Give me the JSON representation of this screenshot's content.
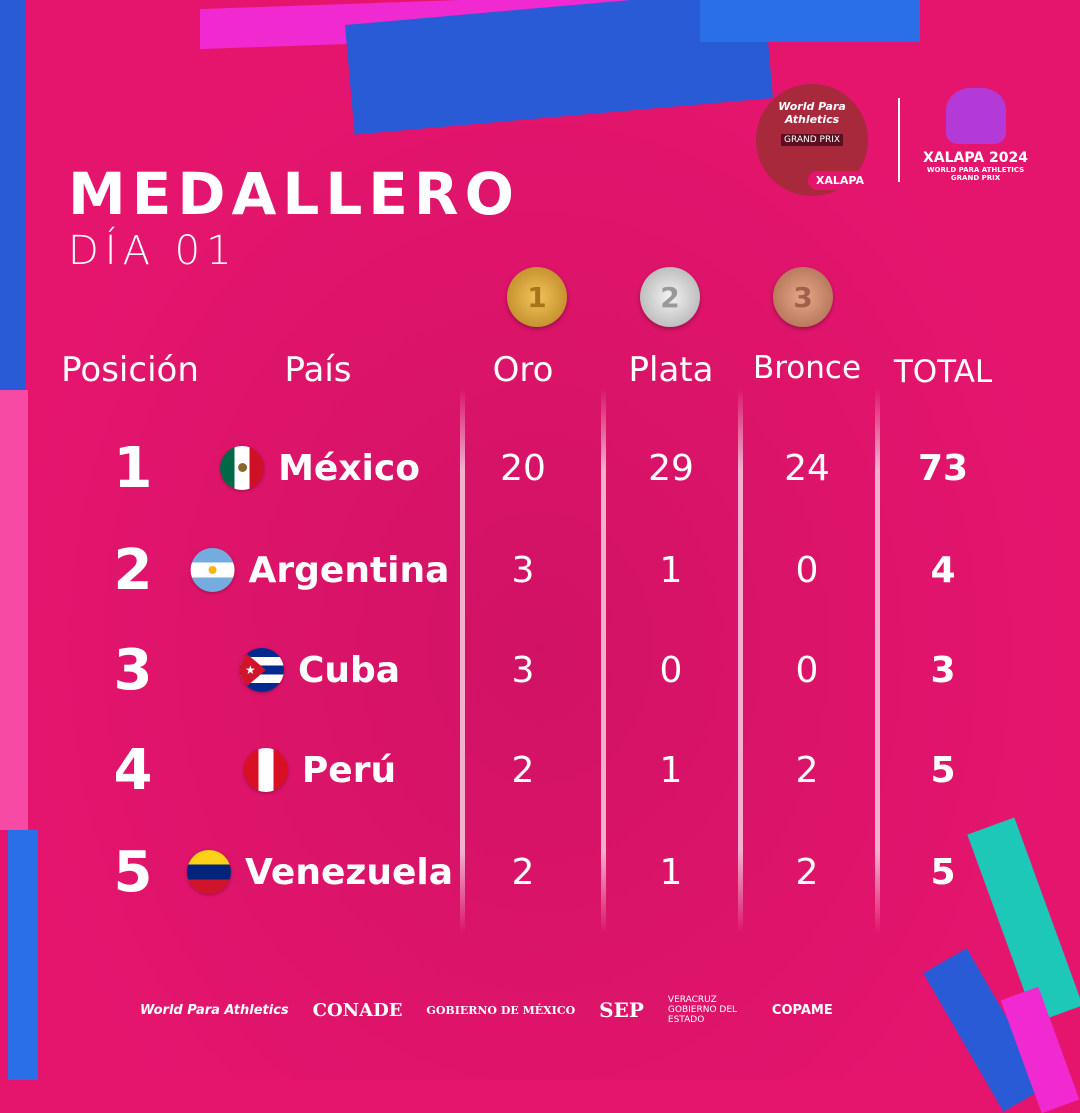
{
  "title": "MEDALLERO",
  "subtitle": "DÍA 01",
  "header_logo": {
    "wpa": "World Para Athletics",
    "gp": "GRAND PRIX",
    "city": "XALAPA",
    "event": "XALAPA 2024",
    "event_sub": "WORLD PARA ATHLETICS",
    "event_sub2": "GRAND PRIX"
  },
  "medals": [
    {
      "label": "1",
      "color": "#d9a53a"
    },
    {
      "label": "2",
      "color": "#c8c8c8"
    },
    {
      "label": "3",
      "color": "#c98a6a"
    }
  ],
  "columns": {
    "position": "Posición",
    "country": "País",
    "gold": "Oro",
    "silver": "Plata",
    "bronze": "Bronce",
    "total": "TOTAL"
  },
  "rows": [
    {
      "pos": "1",
      "country": "México",
      "flag": "mexico-flag",
      "gold": "20",
      "silver": "29",
      "bronze": "24",
      "total": "73"
    },
    {
      "pos": "2",
      "country": "Argentina",
      "flag": "argentina-flag",
      "gold": "3",
      "silver": "1",
      "bronze": "0",
      "total": "4"
    },
    {
      "pos": "3",
      "country": "Cuba",
      "flag": "cuba-flag",
      "gold": "3",
      "silver": "0",
      "bronze": "0",
      "total": "3"
    },
    {
      "pos": "4",
      "country": "Perú",
      "flag": "peru-flag",
      "gold": "2",
      "silver": "1",
      "bronze": "2",
      "total": "5"
    },
    {
      "pos": "5",
      "country": "Venezuela",
      "flag": "venezuela-flag",
      "gold": "2",
      "silver": "1",
      "bronze": "2",
      "total": "5"
    }
  ],
  "sponsors": [
    "World Para Athletics",
    "CONADE",
    "GOBIERNO DE MÉXICO",
    "SEP",
    "VERACRUZ GOBIERNO DEL ESTADO",
    "COPAME"
  ]
}
